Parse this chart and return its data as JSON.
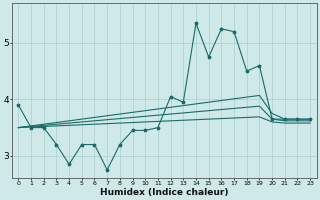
{
  "xlabel": "Humidex (Indice chaleur)",
  "background_color": "#cfe8e8",
  "grid_color": "#aacfcf",
  "line_color": "#1a6b6b",
  "x_values": [
    0,
    1,
    2,
    3,
    4,
    5,
    6,
    7,
    8,
    9,
    10,
    11,
    12,
    13,
    14,
    15,
    16,
    17,
    18,
    19,
    20,
    21,
    22,
    23
  ],
  "jagged": [
    3.9,
    3.5,
    3.5,
    3.2,
    2.85,
    3.2,
    3.2,
    2.75,
    3.2,
    3.45,
    3.45,
    3.5,
    4.05,
    3.95,
    5.35,
    4.75,
    5.25,
    5.2,
    4.5,
    4.6,
    3.65,
    3.65,
    3.65,
    3.65
  ],
  "line1": [
    3.5,
    3.53,
    3.56,
    3.59,
    3.62,
    3.65,
    3.68,
    3.71,
    3.74,
    3.77,
    3.8,
    3.83,
    3.86,
    3.89,
    3.92,
    3.95,
    3.98,
    4.01,
    4.04,
    4.07,
    3.75,
    3.65,
    3.65,
    3.65
  ],
  "line2": [
    3.5,
    3.52,
    3.54,
    3.56,
    3.58,
    3.6,
    3.62,
    3.64,
    3.66,
    3.68,
    3.7,
    3.72,
    3.74,
    3.76,
    3.78,
    3.8,
    3.82,
    3.84,
    3.86,
    3.88,
    3.65,
    3.62,
    3.62,
    3.62
  ],
  "line3": [
    3.5,
    3.51,
    3.52,
    3.53,
    3.54,
    3.55,
    3.56,
    3.57,
    3.58,
    3.59,
    3.6,
    3.61,
    3.62,
    3.63,
    3.64,
    3.65,
    3.66,
    3.67,
    3.68,
    3.69,
    3.6,
    3.58,
    3.58,
    3.58
  ],
  "ylim": [
    2.6,
    5.7
  ],
  "yticks": [
    3,
    4,
    5
  ],
  "xlim": [
    -0.5,
    23.5
  ],
  "figsize": [
    3.2,
    2.0
  ],
  "dpi": 100
}
